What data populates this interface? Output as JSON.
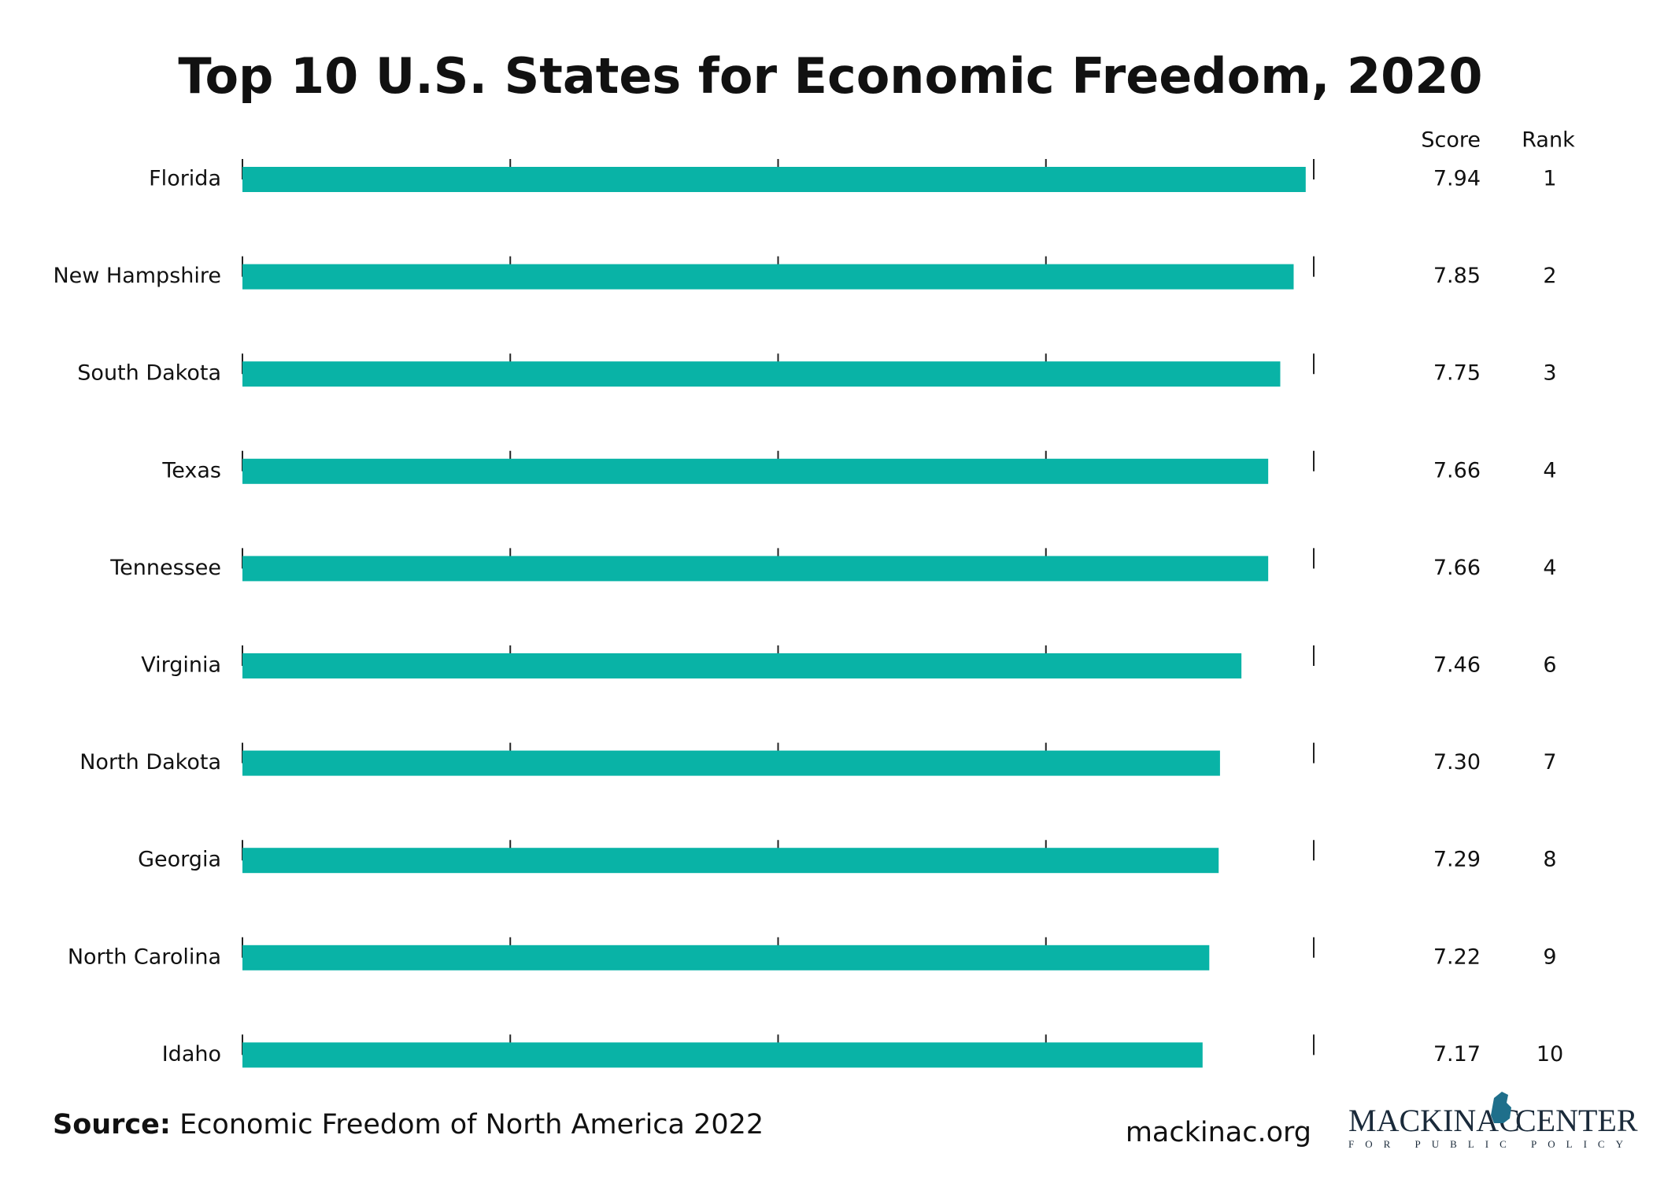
{
  "chart_data": {
    "type": "bar",
    "orientation": "horizontal",
    "title": "Top 10 U.S. States for Economic Freedom, 2020",
    "categories": [
      "Florida",
      "New Hampshire",
      "South Dakota",
      "Texas",
      "Tennessee",
      "Virginia",
      "North Dakota",
      "Georgia",
      "North Carolina",
      "Idaho"
    ],
    "values": [
      7.94,
      7.85,
      7.75,
      7.66,
      7.66,
      7.46,
      7.3,
      7.29,
      7.22,
      7.17
    ],
    "value_labels": [
      "7.94",
      "7.85",
      "7.75",
      "7.66",
      "7.66",
      "7.46",
      "7.30",
      "7.29",
      "7.22",
      "7.17"
    ],
    "ranks": [
      1,
      2,
      3,
      4,
      4,
      6,
      7,
      8,
      9,
      10
    ],
    "score_header": "Score",
    "rank_header": "Rank",
    "color": "#09b3a6",
    "xlim": [
      0,
      8
    ],
    "xticks": [
      0,
      2,
      4,
      6,
      8
    ],
    "grid": true
  },
  "footer": {
    "source_label": "Source:",
    "source_text": "Economic Freedom of North America 2022",
    "website": "mackinac.org",
    "logo_left": "MACKINAC",
    "logo_right": "CENTER",
    "logo_tagline": "FOR PUBLIC POLICY"
  }
}
